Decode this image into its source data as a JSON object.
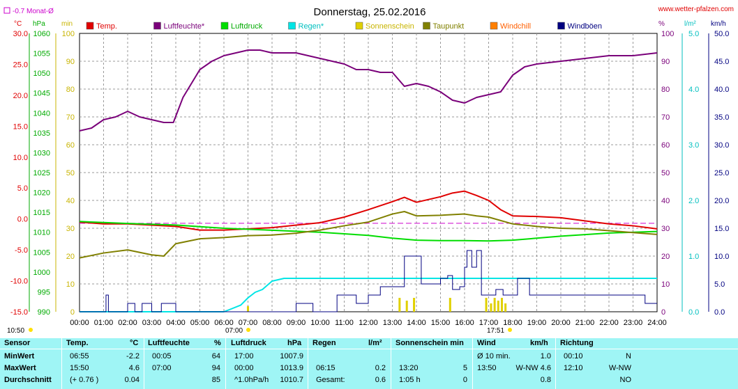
{
  "title": "Donnerstag, 25.02.2016",
  "site": "www.wetter-pfalzen.com",
  "month_avg_label": "-0.7 Monat-Ø",
  "start_time_label": "10:50",
  "sunrise_label": "07:00",
  "sunset_label": "17:51",
  "colors": {
    "temp": "#e00000",
    "humidity": "#7a007a",
    "pressure": "#00dd00",
    "rain": "#00e5e5",
    "sun": "#e0d000",
    "dew": "#808000",
    "windchill": "#ff7f00",
    "gust": "#000080",
    "monthavg": "#cc00cc"
  },
  "axes": {
    "temp": {
      "unit": "°C",
      "ticks": [
        "30.0",
        "25.0",
        "20.0",
        "15.0",
        "10.0",
        "5.0",
        "0.0",
        "-5.0",
        "-10.0",
        "-15.0"
      ]
    },
    "pressure": {
      "unit": "hPa",
      "ticks": [
        "1060",
        "1055",
        "1050",
        "1045",
        "1040",
        "1035",
        "1030",
        "1025",
        "1020",
        "1015",
        "1010",
        "1005",
        "1000",
        "995",
        "990"
      ]
    },
    "sun": {
      "unit": "min",
      "ticks": [
        "100",
        "90",
        "80",
        "70",
        "60",
        "50",
        "40",
        "30",
        "20",
        "10",
        "0"
      ]
    },
    "humidity": {
      "unit": "%",
      "ticks": [
        "100",
        "90",
        "80",
        "70",
        "60",
        "50",
        "40",
        "30",
        "20",
        "10",
        "0"
      ]
    },
    "rain": {
      "unit": "l/m²",
      "ticks": [
        "5.0",
        "4.0",
        "3.0",
        "2.0",
        "1.0",
        "0.0"
      ]
    },
    "wind": {
      "unit": "km/h",
      "ticks": [
        "50.0",
        "45.0",
        "40.0",
        "35.0",
        "30.0",
        "25.0",
        "20.0",
        "15.0",
        "10.0",
        "5.0",
        "0.0"
      ]
    },
    "x": {
      "ticks": [
        "00:00",
        "01:00",
        "02:00",
        "03:00",
        "04:00",
        "05:00",
        "06:00",
        "07:00",
        "08:00",
        "09:00",
        "10:00",
        "11:00",
        "12:00",
        "13:00",
        "14:00",
        "15:00",
        "16:00",
        "17:00",
        "18:00",
        "19:00",
        "20:00",
        "21:00",
        "22:00",
        "23:00",
        "24:00"
      ]
    }
  },
  "chart_data": {
    "type": "line",
    "title": "Donnerstag, 25.02.2016",
    "xlabel": "",
    "ylabel": "",
    "x_range": [
      0,
      24
    ],
    "month_average_temp": -0.7,
    "series": [
      {
        "name": "Temp.",
        "axis": "temp",
        "x": [
          0,
          1,
          2,
          3,
          4,
          5,
          6,
          7,
          8,
          9,
          10,
          11,
          12,
          13,
          13.5,
          14,
          15,
          15.5,
          16,
          16.5,
          17,
          17.5,
          18,
          19,
          20,
          21,
          22,
          23,
          24
        ],
        "y": [
          -0.5,
          -0.8,
          -0.8,
          -1.0,
          -1.2,
          -1.8,
          -1.8,
          -1.6,
          -1.4,
          -1.0,
          -0.6,
          0.3,
          1.5,
          2.8,
          3.5,
          2.7,
          3.6,
          4.2,
          4.5,
          3.8,
          3.0,
          1.5,
          0.5,
          0.4,
          0.2,
          -0.3,
          -0.8,
          -1.1,
          -1.6
        ]
      },
      {
        "name": "Luftfeuchte*",
        "axis": "humidity",
        "x": [
          0,
          0.5,
          1,
          1.5,
          2,
          2.5,
          3,
          3.5,
          3.9,
          4.3,
          5,
          5.5,
          6,
          6.5,
          7,
          7.5,
          8,
          9,
          10,
          11,
          11.5,
          12,
          12.5,
          13,
          13.5,
          14,
          14.5,
          15,
          15.5,
          16,
          16.5,
          17,
          17.5,
          18,
          18.5,
          19,
          20,
          21,
          22,
          23,
          24
        ],
        "y": [
          65,
          66,
          69,
          70,
          72,
          70,
          69,
          68,
          68,
          77,
          87,
          90,
          92,
          93,
          94,
          94,
          93,
          93,
          91,
          89,
          87,
          87,
          86,
          86,
          81,
          82,
          81,
          79,
          76,
          75,
          77,
          78,
          79,
          85,
          88,
          89,
          90,
          91,
          92,
          92,
          93
        ]
      },
      {
        "name": "Luftdruck",
        "axis": "pressure",
        "x": [
          0,
          2,
          4,
          6,
          8,
          10,
          12,
          13,
          14,
          15,
          16,
          17,
          18,
          19,
          20,
          21,
          22,
          23,
          24
        ],
        "y": [
          1012.7,
          1012.2,
          1011.8,
          1011.0,
          1010.5,
          1010.0,
          1009.2,
          1008.5,
          1008.0,
          1007.9,
          1007.9,
          1007.8,
          1008.0,
          1008.5,
          1009.0,
          1009.4,
          1009.8,
          1010.0,
          1010.2
        ]
      },
      {
        "name": "Regen*",
        "axis": "rain",
        "x": [
          0,
          6,
          6.3,
          6.7,
          7,
          7.3,
          7.6,
          8,
          8.5,
          9,
          10,
          24
        ],
        "y": [
          0,
          0,
          0.05,
          0.12,
          0.25,
          0.35,
          0.4,
          0.55,
          0.6,
          0.6,
          0.6,
          0.6
        ]
      },
      {
        "name": "Sonnenschein",
        "axis": "sun",
        "x": [
          7.0,
          13.3,
          13.6,
          13.9,
          15.4,
          16.9,
          17.1,
          17.25,
          17.4,
          17.55,
          17.7
        ],
        "y": [
          2,
          5,
          4,
          5,
          5,
          5,
          3,
          5,
          4,
          5,
          3
        ]
      },
      {
        "name": "Taupunkt",
        "axis": "temp",
        "x": [
          0,
          1,
          2,
          3,
          3.5,
          4,
          5,
          6,
          7,
          8,
          9,
          10,
          11,
          12,
          13,
          13.5,
          14,
          15,
          16,
          16.5,
          17,
          18,
          19,
          20,
          21,
          22,
          23,
          24
        ],
        "y": [
          -6.3,
          -5.5,
          -5.0,
          -5.8,
          -6.0,
          -4.0,
          -3.2,
          -3.0,
          -2.7,
          -2.6,
          -2.3,
          -1.8,
          -1.1,
          -0.5,
          0.8,
          1.2,
          0.5,
          0.6,
          0.8,
          0.5,
          0.3,
          -0.8,
          -1.2,
          -1.5,
          -1.6,
          -1.9,
          -2.2,
          -2.5
        ]
      },
      {
        "name": "Windchill",
        "axis": "temp",
        "x": [],
        "y": []
      },
      {
        "name": "Windböen",
        "axis": "wind",
        "x": [
          0,
          1.1,
          1.2,
          1.5,
          2,
          2.3,
          2.6,
          3,
          3.4,
          3.9,
          4,
          8.6,
          9,
          9.6,
          9.7,
          10.6,
          10.7,
          11.5,
          12,
          12.5,
          13,
          13.5,
          13.8,
          14.2,
          14.5,
          15,
          15.3,
          15.5,
          15.8,
          16,
          16.1,
          16.3,
          16.5,
          16.7,
          17,
          17.3,
          17.6,
          18,
          18.2,
          18.7,
          19,
          19.8,
          20.5,
          21,
          21.5,
          22,
          22.5,
          23,
          23.5,
          24
        ],
        "y": [
          0,
          3,
          0,
          0,
          1.5,
          0,
          1.5,
          0,
          1.5,
          1.5,
          0,
          0,
          1.5,
          1.5,
          0,
          0,
          3,
          1.5,
          3,
          4.5,
          4.5,
          10,
          10,
          5,
          5,
          6,
          6.5,
          4,
          4.5,
          8,
          11,
          8,
          11,
          3,
          3,
          4,
          3,
          3,
          6,
          3,
          3,
          3,
          3,
          3,
          3,
          3,
          3,
          3,
          1.5,
          1.5
        ]
      }
    ]
  },
  "table": {
    "headers": {
      "sensor": "Sensor",
      "temp": "Temp.",
      "temp_unit": "°C",
      "hum": "Luftfeuchte",
      "hum_unit": "%",
      "press": "Luftdruck",
      "press_unit": "hPa",
      "rain": "Regen",
      "rain_unit": "l/m²",
      "sun": "Sonnenschein min",
      "wind": "Wind",
      "wind_unit": "km/h",
      "dir": "Richtung"
    },
    "rows": [
      {
        "label": "MinWert",
        "t_time": "06:55",
        "t_val": "-2.2",
        "h_time": "00:05",
        "h_val": "64",
        "p_time": "17:00",
        "p_val": "1007.9",
        "r_time": "",
        "r_val": "",
        "s_time": "",
        "s_val": "",
        "w_time": "Ø 10 min.",
        "w_val": "1.0",
        "d_time": "00:10",
        "d_val": "N"
      },
      {
        "label": "MaxWert",
        "t_time": "15:50",
        "t_val": "4.6",
        "h_time": "07:00",
        "h_val": "94",
        "p_time": "00:00",
        "p_val": "1013.9",
        "r_time": "06:15",
        "r_val": "0.2",
        "s_time": "13:20",
        "s_val": "5",
        "w_time": "13:50",
        "w_val": "W-NW 4.6",
        "d_time": "12:10",
        "d_val": "W-NW"
      },
      {
        "label": "Durchschnitt",
        "t_time": "(+ 0.76 )",
        "t_val": "0.04",
        "h_time": "",
        "h_val": "85",
        "p_time": "^1.0hPa/h",
        "p_val": "1010.7",
        "r_time": "Gesamt:",
        "r_val": "0.6",
        "s_time": "1:05 h",
        "s_val": "0",
        "w_time": "",
        "w_val": "0.8",
        "d_time": "",
        "d_val": "NO"
      }
    ]
  }
}
